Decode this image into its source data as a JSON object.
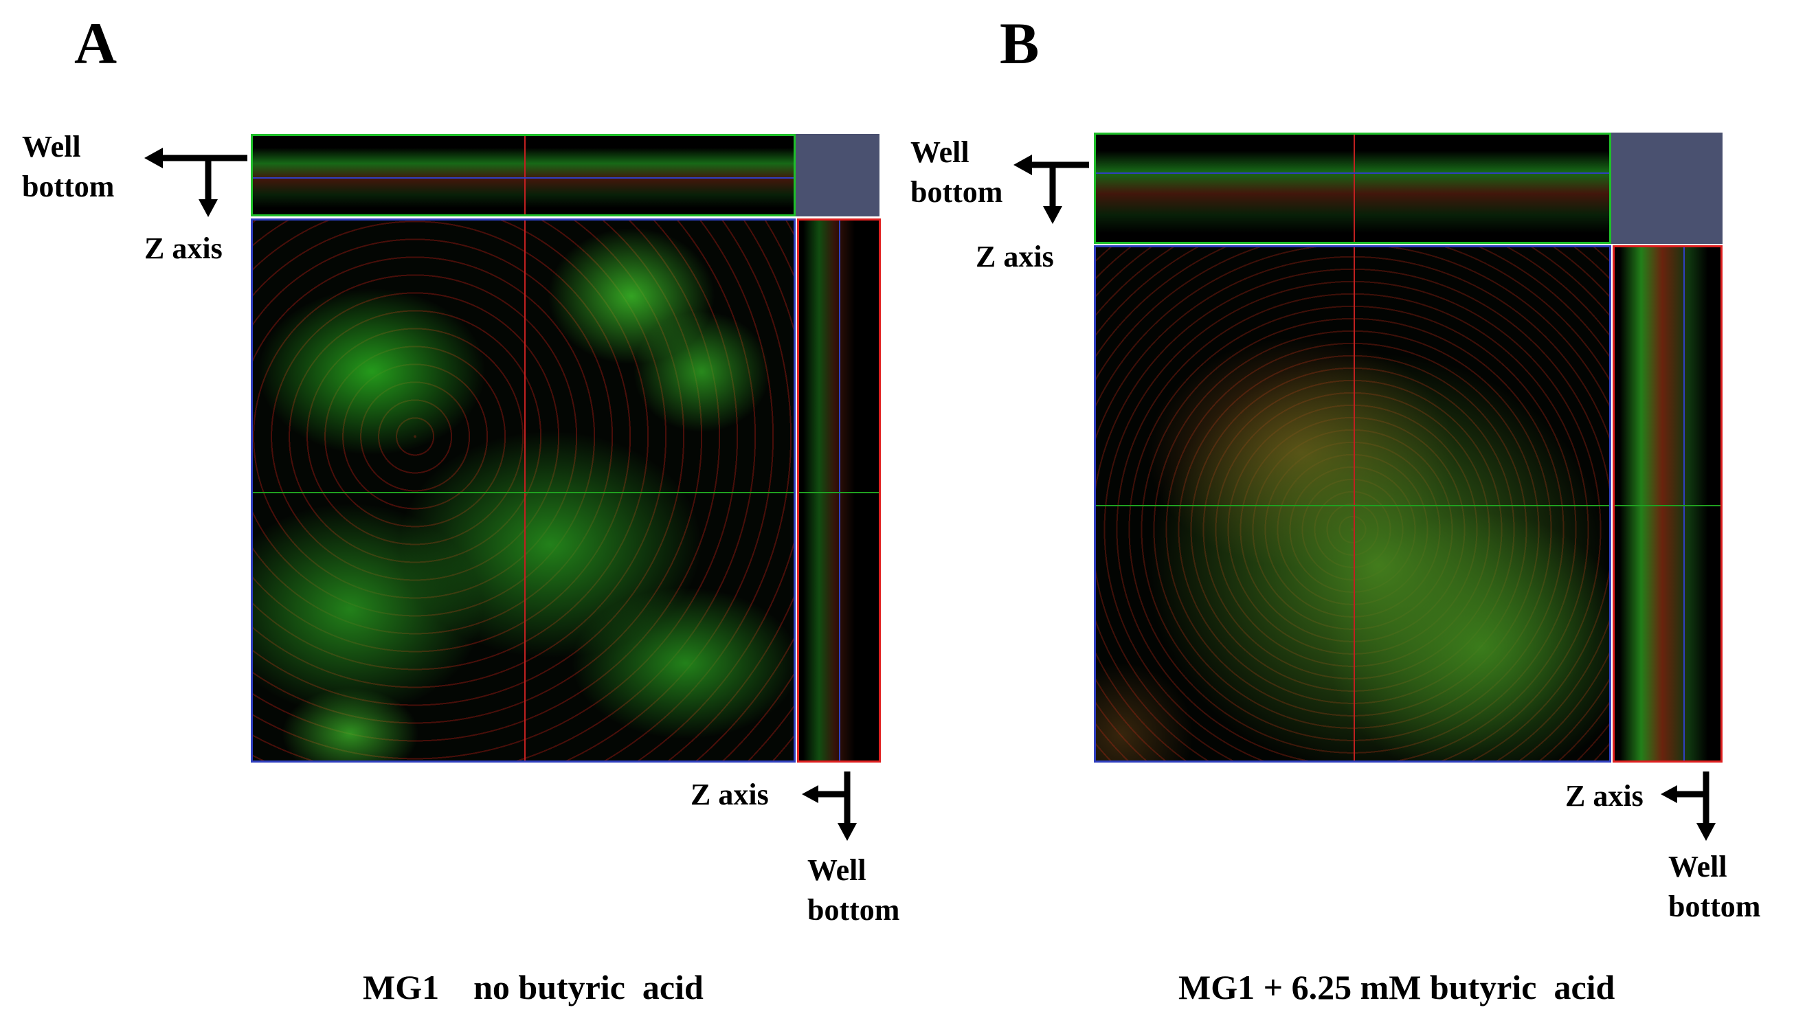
{
  "panels": [
    {
      "letter": "A",
      "top_label_line1": "Well",
      "top_label_line2": "bottom",
      "top_axis_label": "Z axis",
      "right_axis_label": "Z axis",
      "right_label_line1": "Well",
      "right_label_line2": "bottom",
      "caption": "MG1    no butyric  acid"
    },
    {
      "letter": "B",
      "top_label_line1": "Well",
      "top_label_line2": "bottom",
      "top_axis_label": "Z axis",
      "right_axis_label": "Z axis",
      "right_label_line1": "Well",
      "right_label_line2": "bottom",
      "caption": "MG1 + 6.25 mM butyric  acid"
    }
  ],
  "colors": {
    "xz_frame": "#1fbf2a",
    "yz_frame": "#e02020",
    "xy_frame": "#3040c0",
    "crosshair_vertical": "#c02020",
    "crosshair_horizontal": "#20a020",
    "corner_fill": "#4a5170",
    "stain_live": "#2ecc2e",
    "stain_dead": "#d62020"
  }
}
